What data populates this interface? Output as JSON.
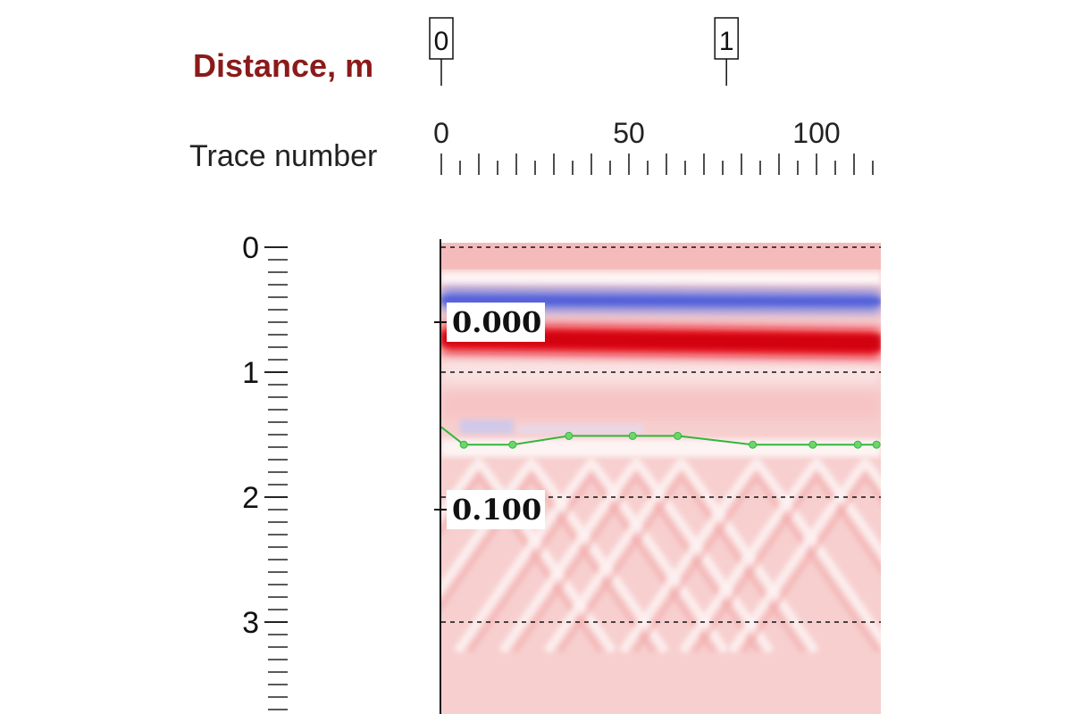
{
  "header": {
    "distance_label": "Distance, m",
    "trace_label": "Trace number"
  },
  "distance_markers": [
    {
      "label": "0",
      "trace": 0
    },
    {
      "label": "1",
      "trace": 76
    }
  ],
  "trace_ticks": [
    "0",
    "50",
    "100"
  ],
  "depth_ticks": [
    "0",
    "1",
    "2",
    "3"
  ],
  "time_labels": [
    "0.000",
    "0.100"
  ],
  "colors": {
    "background_tint": "#f7cfcf",
    "positive_band": "#e8101a",
    "negative_band": "#6a78e0",
    "horizon_line": "#2fb83a",
    "distance_label": "#8b1a1a"
  },
  "chart_data": {
    "type": "heatmap",
    "title": "",
    "xlabel": "Trace number",
    "ylabel": "",
    "xlim": [
      0,
      116
    ],
    "ylim": [
      0,
      3.8
    ],
    "x_ticks": [
      0,
      50,
      100
    ],
    "y_ticks": [
      0,
      1,
      2,
      3
    ],
    "dashed_gridlines_depth": [
      0,
      1,
      2,
      3
    ],
    "secondary_axis_label": "Distance, m",
    "time_axis_values": [
      {
        "label": "0.000",
        "depth": 0.6
      },
      {
        "label": "0.100",
        "depth": 2.1
      }
    ],
    "bands": [
      {
        "name": "",
        "polarity": "negative",
        "depth": 0.42
      },
      {
        "name": "",
        "polarity": "positive",
        "depth": 0.73
      }
    ],
    "series": [
      {
        "name": "",
        "type": "line",
        "color": "#2fb83a",
        "x": [
          0,
          6,
          19,
          34,
          51,
          63,
          83,
          99,
          111,
          116
        ],
        "y": [
          1.44,
          1.58,
          1.58,
          1.51,
          1.51,
          1.51,
          1.58,
          1.58,
          1.58,
          1.58
        ]
      }
    ]
  }
}
